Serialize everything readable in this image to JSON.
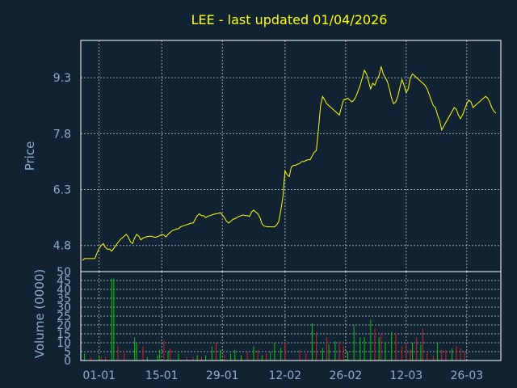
{
  "title": "LEE - last updated 01/04/2026",
  "colors": {
    "background": "#112233",
    "price_line": "#ffff00",
    "up_volume": "#00cc00",
    "down_volume": "#cc2222",
    "text": "#8eafc8",
    "title": "#ffff00"
  },
  "chart_data": [
    {
      "type": "line",
      "title": "LEE - last updated 01/04/2026",
      "ylabel": "Price",
      "ylim": [
        4.1,
        10.3
      ],
      "yticks": [
        "4.8",
        "6.3",
        "7.8",
        "9.3"
      ],
      "grid": true,
      "series": [
        {
          "values": [
            4.4,
            4.45,
            4.45,
            4.45,
            4.45,
            4.45,
            4.45,
            4.6,
            4.72,
            4.8,
            4.85,
            4.75,
            4.7,
            4.7,
            4.65,
            4.72,
            4.8,
            4.88,
            4.95,
            5.0,
            5.05,
            5.1,
            5.02,
            4.9,
            4.85,
            5.0,
            5.1,
            5.05,
            4.95,
            5.0,
            5.02,
            5.04,
            5.05,
            5.05,
            5.03,
            5.02,
            5.04,
            5.06,
            5.1,
            5.08,
            5.03,
            5.1,
            5.15,
            5.2,
            5.22,
            5.24,
            5.25,
            5.3,
            5.32,
            5.34,
            5.36,
            5.38,
            5.4,
            5.4,
            5.5,
            5.6,
            5.65,
            5.6,
            5.6,
            5.55,
            5.58,
            5.6,
            5.62,
            5.64,
            5.65,
            5.66,
            5.68,
            5.62,
            5.55,
            5.45,
            5.4,
            5.45,
            5.5,
            5.52,
            5.55,
            5.58,
            5.6,
            5.62,
            5.6,
            5.6,
            5.58,
            5.7,
            5.75,
            5.7,
            5.65,
            5.55,
            5.38,
            5.32,
            5.31,
            5.3,
            5.3,
            5.3,
            5.3,
            5.35,
            5.45,
            5.75,
            6.1,
            6.8,
            6.7,
            6.65,
            6.9,
            6.95,
            6.95,
            6.98,
            7.0,
            7.05,
            7.05,
            7.08,
            7.1,
            7.1,
            7.2,
            7.3,
            7.35,
            7.9,
            8.55,
            8.8,
            8.7,
            8.6,
            8.55,
            8.5,
            8.45,
            8.4,
            8.35,
            8.3,
            8.5,
            8.7,
            8.72,
            8.75,
            8.7,
            8.65,
            8.7,
            8.8,
            8.95,
            9.1,
            9.3,
            9.5,
            9.4,
            9.2,
            9.0,
            9.15,
            9.1,
            9.25,
            9.35,
            9.6,
            9.4,
            9.3,
            9.2,
            9.0,
            8.75,
            8.6,
            8.65,
            8.8,
            9.05,
            9.25,
            9.1,
            8.9,
            9.0,
            9.3,
            9.4,
            9.35,
            9.3,
            9.25,
            9.2,
            9.15,
            9.1,
            9.0,
            8.85,
            8.7,
            8.55,
            8.5,
            8.3,
            8.15,
            7.9,
            8.0,
            8.1,
            8.2,
            8.3,
            8.4,
            8.5,
            8.45,
            8.3,
            8.2,
            8.3,
            8.45,
            8.6,
            8.7,
            8.65,
            8.5,
            8.55,
            8.6,
            8.65,
            8.7,
            8.75,
            8.8,
            8.75,
            8.65,
            8.5,
            8.4,
            8.35
          ]
        }
      ]
    },
    {
      "type": "bar",
      "ylabel": "Volume (0000)",
      "ylim": [
        0,
        50
      ],
      "yticks": [
        "0",
        "5",
        "10",
        "15",
        "20",
        "25",
        "30",
        "35",
        "40",
        "45",
        "50"
      ],
      "xticks": [
        "01-01",
        "15-01",
        "29-01",
        "12-02",
        "26-02",
        "12-03",
        "26-03"
      ],
      "grid": true,
      "series": [
        {
          "name": "up",
          "values": [
            [
              1,
              4
            ],
            [
              8,
              3
            ],
            [
              14,
              46
            ],
            [
              15,
              46
            ],
            [
              25,
              13
            ],
            [
              26,
              10
            ],
            [
              31,
              2
            ],
            [
              36,
              3
            ],
            [
              37,
              6
            ],
            [
              41,
              5
            ],
            [
              46,
              4
            ],
            [
              55,
              3
            ],
            [
              59,
              3
            ],
            [
              62,
              8
            ],
            [
              66,
              6
            ],
            [
              71,
              4
            ],
            [
              73,
              6
            ],
            [
              76,
              3
            ],
            [
              82,
              8
            ],
            [
              86,
              3
            ],
            [
              90,
              5
            ],
            [
              92,
              10
            ],
            [
              95,
              7
            ],
            [
              110,
              21
            ],
            [
              115,
              7
            ],
            [
              118,
              9
            ],
            [
              121,
              11
            ],
            [
              127,
              5
            ],
            [
              130,
              20
            ],
            [
              133,
              13
            ],
            [
              135,
              13
            ],
            [
              138,
              23
            ],
            [
              142,
              13
            ],
            [
              145,
              10
            ],
            [
              148,
              16
            ],
            [
              158,
              10
            ],
            [
              162,
              9
            ],
            [
              170,
              10
            ],
            [
              177,
              7
            ]
          ]
        },
        {
          "name": "down",
          "values": [
            [
              4,
              2
            ],
            [
              9,
              2
            ],
            [
              11,
              2
            ],
            [
              17,
              8
            ],
            [
              20,
              4
            ],
            [
              29,
              8
            ],
            [
              39,
              11
            ],
            [
              42,
              7
            ],
            [
              50,
              2
            ],
            [
              53,
              2
            ],
            [
              57,
              2
            ],
            [
              64,
              10
            ],
            [
              68,
              3
            ],
            [
              79,
              5
            ],
            [
              84,
              6
            ],
            [
              88,
              4
            ],
            [
              97,
              10
            ],
            [
              104,
              6
            ],
            [
              107,
              4
            ],
            [
              112,
              16
            ],
            [
              117,
              13
            ],
            [
              123,
              11
            ],
            [
              125,
              8
            ],
            [
              140,
              18
            ],
            [
              143,
              15
            ],
            [
              150,
              15
            ],
            [
              153,
              8
            ],
            [
              155,
              10
            ],
            [
              157,
              6
            ],
            [
              160,
              13
            ],
            [
              163,
              18
            ],
            [
              165,
              4
            ],
            [
              168,
              3
            ],
            [
              172,
              6
            ],
            [
              174,
              6
            ],
            [
              179,
              8
            ],
            [
              181,
              7
            ],
            [
              183,
              5
            ]
          ]
        }
      ]
    }
  ]
}
